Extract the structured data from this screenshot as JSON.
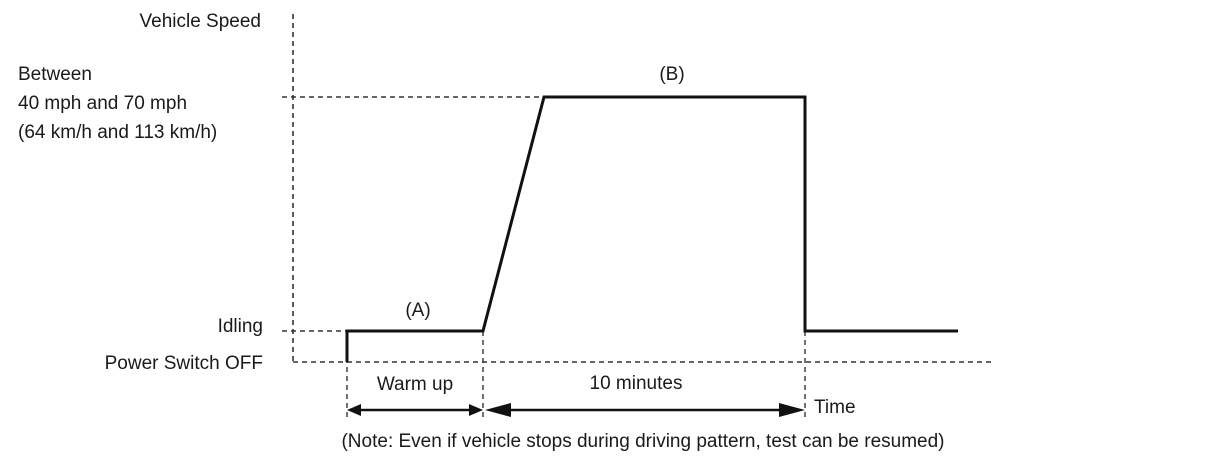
{
  "y_axis": {
    "title": "Vehicle Speed",
    "levels": {
      "speed_range": [
        "Between",
        "40 mph and 70 mph",
        "(64 km/h and 113 km/h)"
      ],
      "idling": "Idling",
      "power_off": "Power Switch OFF"
    }
  },
  "x_axis": {
    "title": "Time"
  },
  "phases": {
    "a": {
      "marker": "(A)",
      "duration_label": "Warm up"
    },
    "b": {
      "marker": "(B)",
      "duration_label": "10 minutes"
    }
  },
  "note": "(Note: Even if vehicle stops during driving pattern, test can be resumed)",
  "colors": {
    "line": "#111111",
    "text": "#1a1a1a",
    "background": "#ffffff"
  }
}
